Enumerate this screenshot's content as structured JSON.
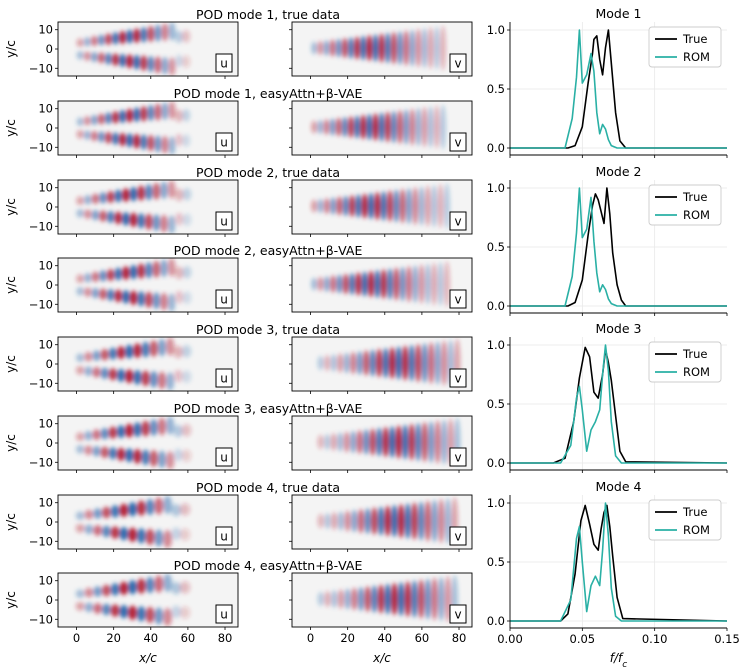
{
  "figure": {
    "rows": [
      {
        "title": "POD mode 1, true data",
        "seed": 1,
        "mode": 1,
        "model": "true"
      },
      {
        "title": "POD mode 1, easyAttn+β-VAE",
        "seed": 2,
        "mode": 1,
        "model": "rom"
      },
      {
        "title": "POD mode 2, true data",
        "seed": 3,
        "mode": 2,
        "model": "true"
      },
      {
        "title": "POD mode 2, easyAttn+β-VAE",
        "seed": 4,
        "mode": 2,
        "model": "rom"
      },
      {
        "title": "POD mode 3, true data",
        "seed": 5,
        "mode": 3,
        "model": "true"
      },
      {
        "title": "POD mode 3, easyAttn+β-VAE",
        "seed": 6,
        "mode": 3,
        "model": "rom"
      },
      {
        "title": "POD mode 4, true data",
        "seed": 7,
        "mode": 4,
        "model": "true"
      },
      {
        "title": "POD mode 4, easyAttn+β-VAE",
        "seed": 8,
        "mode": 4,
        "model": "rom"
      }
    ],
    "field_labels": {
      "u": "u",
      "v": "v"
    },
    "field_x_ticks": [
      "0",
      "20",
      "40",
      "60",
      "80"
    ],
    "field_y_ticks": [
      "10",
      "0",
      "−10"
    ],
    "field_xlabel": "x/c",
    "field_ylabel": "y/c"
  },
  "chart_data": {
    "type": "line",
    "xlabel": "f/f_c",
    "x_ticks": [
      "0.00",
      "0.05",
      "0.10",
      "0.15"
    ],
    "y_ticks": [
      "0.0",
      "0.5",
      "1.0"
    ],
    "xlim": [
      0,
      0.15
    ],
    "ylim": [
      0,
      1
    ],
    "legend": [
      "True",
      "ROM"
    ],
    "colors": {
      "True": "#000000",
      "ROM": "#2ab0a5"
    },
    "panels": [
      {
        "title": "Mode 1",
        "series": [
          {
            "name": "True",
            "x": [
              0,
              0.04,
              0.045,
              0.05,
              0.054,
              0.057,
              0.058,
              0.06,
              0.062,
              0.064,
              0.066,
              0.068,
              0.07,
              0.073,
              0.076,
              0.08,
              0.15
            ],
            "y": [
              0,
              0,
              0.02,
              0.18,
              0.55,
              0.8,
              0.92,
              0.95,
              0.75,
              0.62,
              0.85,
              1.0,
              0.72,
              0.3,
              0.06,
              0,
              0
            ]
          },
          {
            "name": "ROM",
            "x": [
              0,
              0.038,
              0.043,
              0.046,
              0.048,
              0.05,
              0.053,
              0.056,
              0.058,
              0.06,
              0.062,
              0.064,
              0.066,
              0.068,
              0.07,
              0.074,
              0.15
            ],
            "y": [
              0,
              0,
              0.25,
              0.6,
              1.0,
              0.55,
              0.62,
              0.8,
              0.65,
              0.3,
              0.12,
              0.2,
              0.16,
              0.07,
              0.02,
              0,
              0
            ]
          }
        ]
      },
      {
        "title": "Mode 2",
        "series": [
          {
            "name": "True",
            "x": [
              0,
              0.04,
              0.045,
              0.05,
              0.054,
              0.057,
              0.059,
              0.061,
              0.063,
              0.065,
              0.067,
              0.069,
              0.071,
              0.074,
              0.077,
              0.08,
              0.15
            ],
            "y": [
              0,
              0,
              0.03,
              0.22,
              0.6,
              0.85,
              0.95,
              0.9,
              0.8,
              0.7,
              1.0,
              0.78,
              0.45,
              0.18,
              0.05,
              0,
              0
            ]
          },
          {
            "name": "ROM",
            "x": [
              0,
              0.038,
              0.043,
              0.046,
              0.048,
              0.05,
              0.053,
              0.056,
              0.058,
              0.06,
              0.062,
              0.064,
              0.066,
              0.068,
              0.07,
              0.074,
              0.15
            ],
            "y": [
              0,
              0,
              0.25,
              0.62,
              1.0,
              0.58,
              0.65,
              0.92,
              0.55,
              0.28,
              0.12,
              0.18,
              0.14,
              0.06,
              0.02,
              0,
              0
            ]
          }
        ]
      },
      {
        "title": "Mode 3",
        "series": [
          {
            "name": "True",
            "x": [
              0,
              0.03,
              0.038,
              0.044,
              0.048,
              0.052,
              0.055,
              0.058,
              0.061,
              0.064,
              0.066,
              0.068,
              0.07,
              0.073,
              0.076,
              0.08,
              0.15
            ],
            "y": [
              0,
              0,
              0.04,
              0.35,
              0.72,
              0.98,
              0.9,
              0.6,
              0.55,
              0.75,
              0.96,
              0.85,
              0.7,
              0.4,
              0.1,
              0.01,
              0
            ]
          },
          {
            "name": "ROM",
            "x": [
              0,
              0.035,
              0.042,
              0.046,
              0.048,
              0.05,
              0.053,
              0.056,
              0.059,
              0.062,
              0.064,
              0.066,
              0.068,
              0.07,
              0.073,
              0.077,
              0.15
            ],
            "y": [
              0,
              0,
              0.15,
              0.55,
              0.65,
              0.45,
              0.1,
              0.28,
              0.35,
              0.45,
              0.75,
              1.0,
              0.78,
              0.35,
              0.06,
              0,
              0
            ]
          }
        ]
      },
      {
        "title": "Mode 4",
        "series": [
          {
            "name": "True",
            "x": [
              0,
              0.035,
              0.04,
              0.045,
              0.049,
              0.052,
              0.055,
              0.058,
              0.061,
              0.063,
              0.065,
              0.067,
              0.069,
              0.071,
              0.074,
              0.078,
              0.15
            ],
            "y": [
              0,
              0,
              0.06,
              0.4,
              0.85,
              0.98,
              0.82,
              0.65,
              0.6,
              0.78,
              0.92,
              0.98,
              0.8,
              0.55,
              0.2,
              0.02,
              0
            ]
          },
          {
            "name": "ROM",
            "x": [
              0,
              0.035,
              0.042,
              0.046,
              0.048,
              0.05,
              0.053,
              0.056,
              0.059,
              0.062,
              0.064,
              0.066,
              0.068,
              0.07,
              0.073,
              0.077,
              0.15
            ],
            "y": [
              0,
              0,
              0.18,
              0.7,
              0.8,
              0.5,
              0.08,
              0.3,
              0.38,
              0.3,
              0.6,
              1.0,
              0.72,
              0.28,
              0.04,
              0,
              0
            ]
          }
        ]
      }
    ]
  }
}
